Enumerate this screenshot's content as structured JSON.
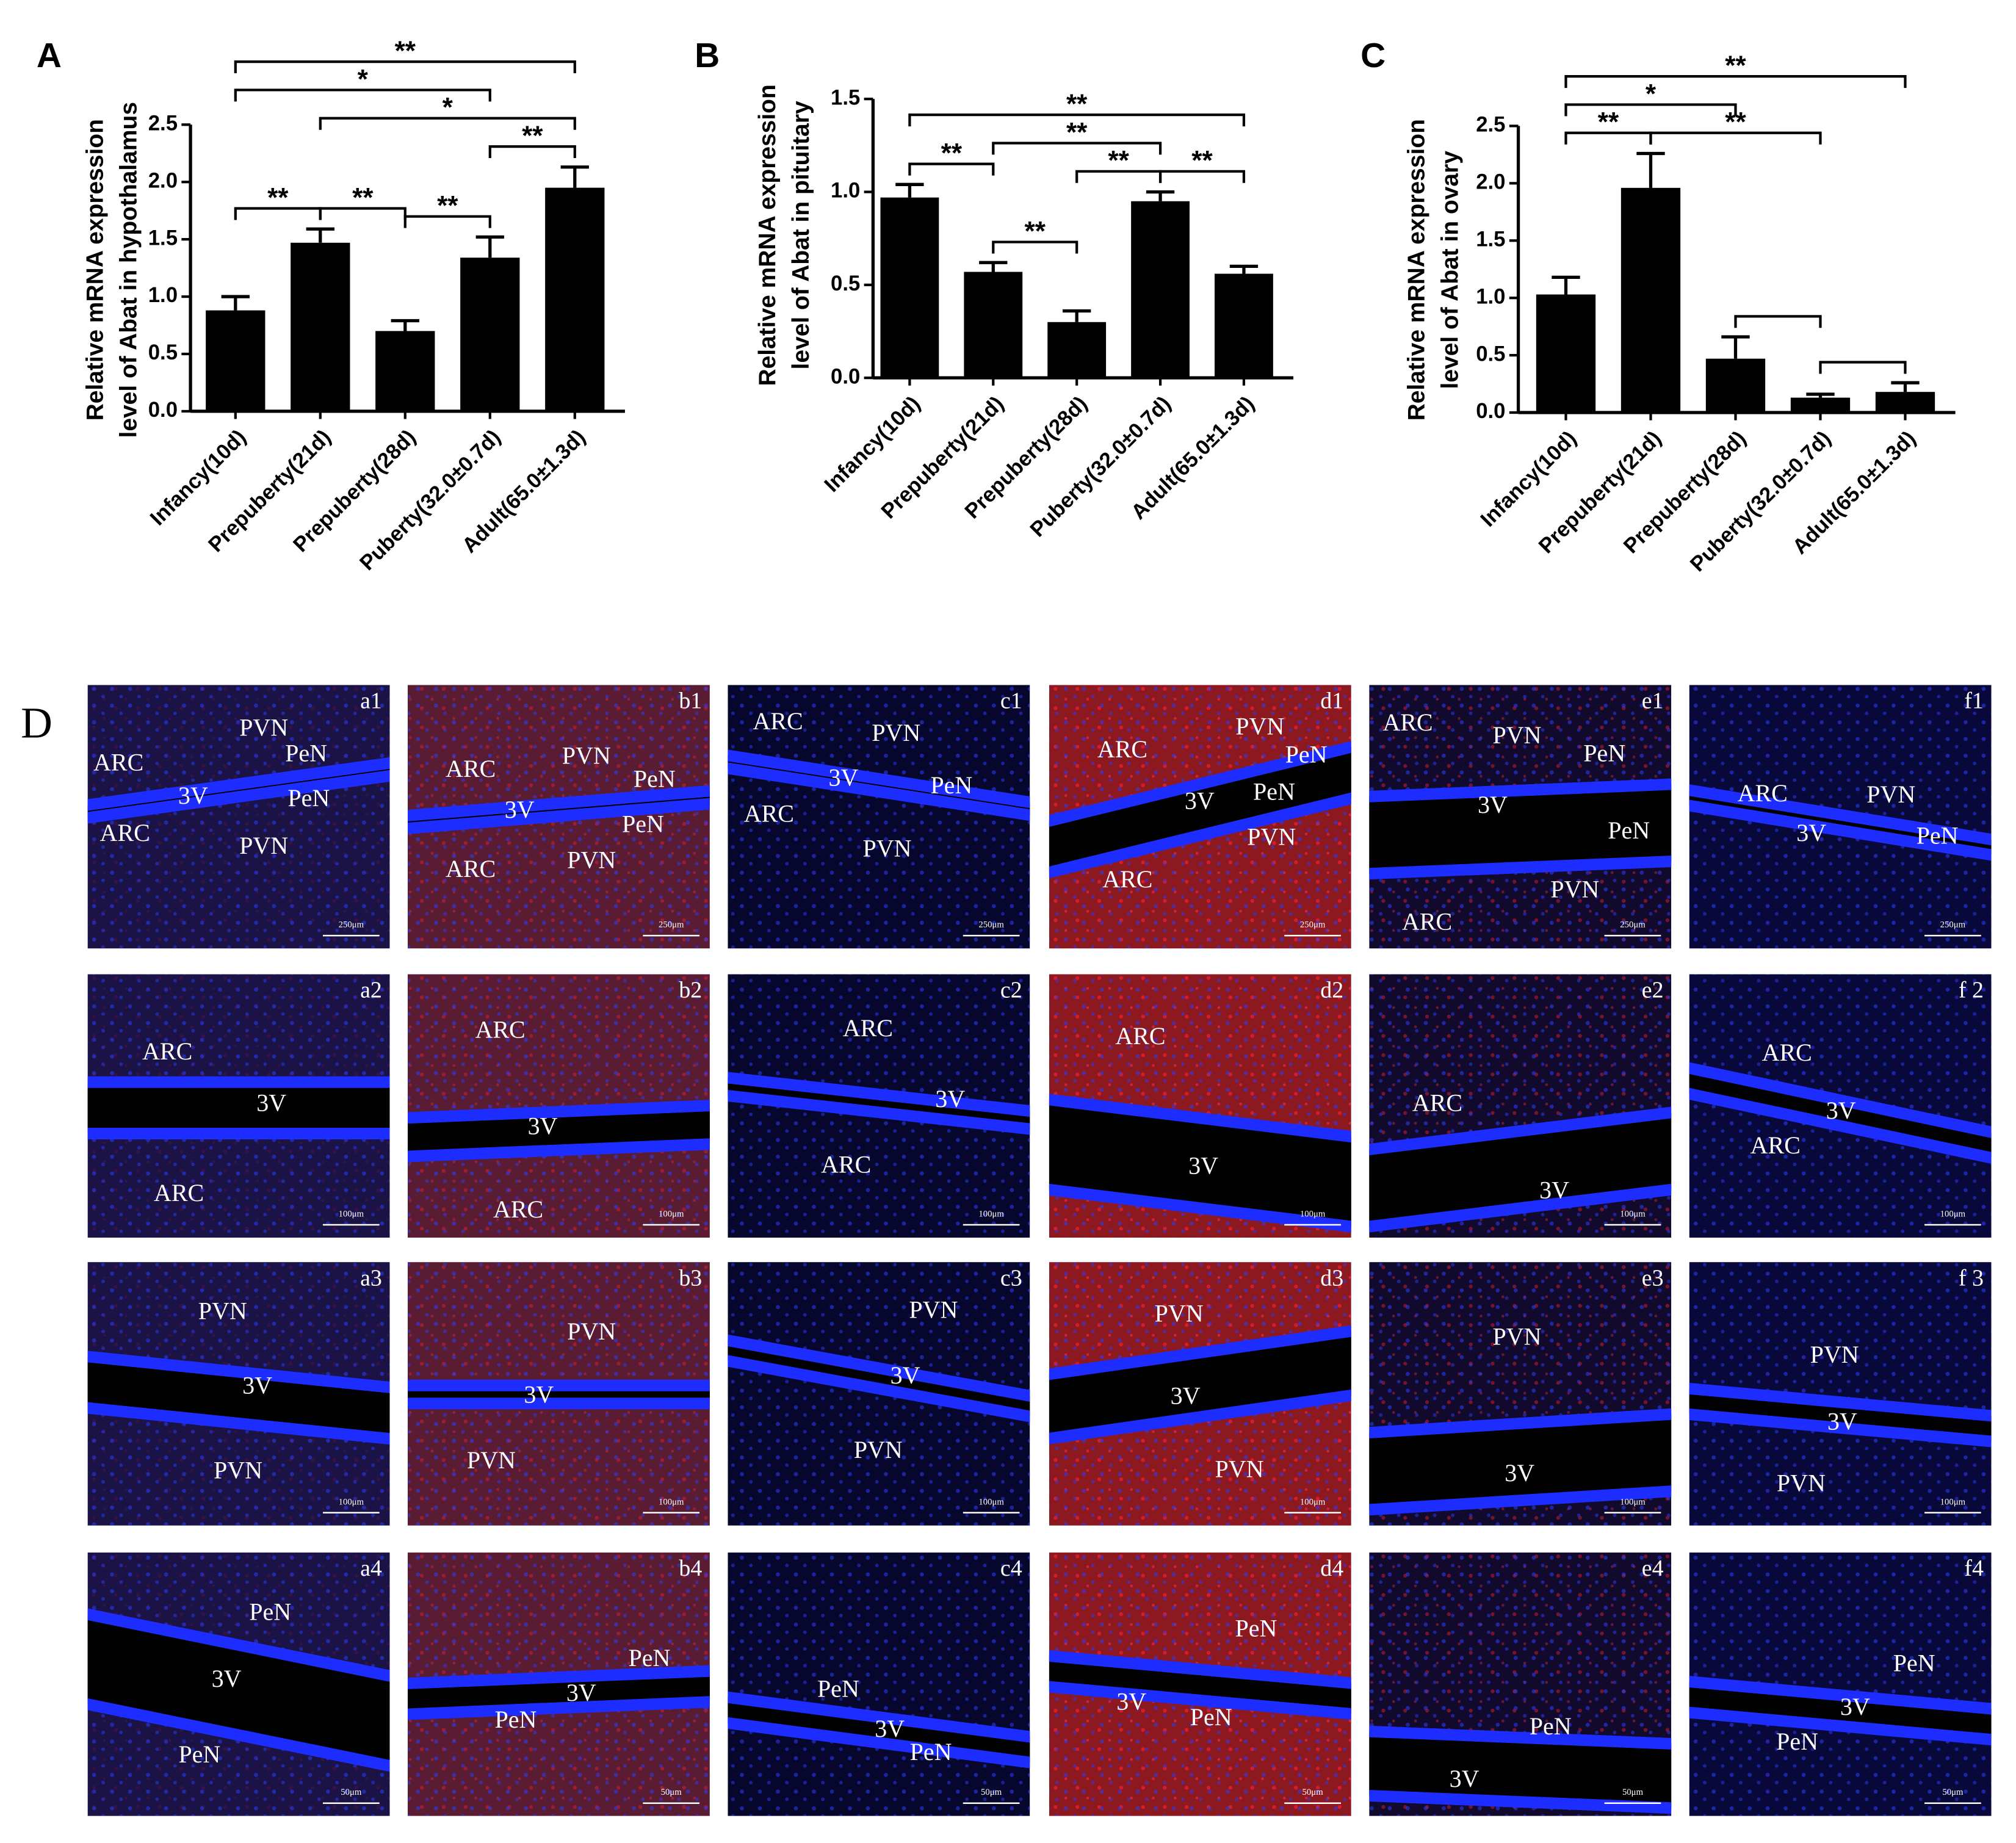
{
  "chart_data": [
    {
      "type": "bar",
      "panel": "A",
      "ylabel": [
        "Relative mRNA expression",
        "level of Abat in hypothalamus"
      ],
      "categories": [
        "Infancy(10d)",
        "Prepuberty(21d)",
        "Prepuberty(28d)",
        "Puberty(32.0±0.7d)",
        "Adult(65.0±1.3d)"
      ],
      "values": [
        0.88,
        1.47,
        0.7,
        1.34,
        1.95
      ],
      "errors": [
        0.12,
        0.12,
        0.09,
        0.18,
        0.18
      ],
      "color": "#000000",
      "ylim": [
        0,
        2.5
      ],
      "yticks": [
        {
          "value": 0,
          "label": "0.0"
        },
        0.5,
        {
          "value": 1,
          "label": "1.0"
        },
        1.5,
        {
          "value": 2,
          "label": "2.0"
        },
        2.5
      ],
      "significance": [
        {
          "from": 0,
          "to": 1,
          "label": "**"
        },
        {
          "from": 1,
          "to": 2,
          "label": "**"
        },
        {
          "from": 2,
          "to": 3,
          "label": "**"
        },
        {
          "from": 3,
          "to": 4,
          "label": "**"
        },
        {
          "from": 1,
          "to": 4,
          "label": "*"
        },
        {
          "from": 0,
          "to": 3,
          "label": "*"
        },
        {
          "from": 0,
          "to": 4,
          "label": "**"
        }
      ]
    },
    {
      "type": "bar",
      "panel": "B",
      "ylabel": [
        "Relative mRNA expression",
        "level of Abat in pituitary"
      ],
      "categories": [
        "Infancy(10d)",
        "Prepuberty(21d)",
        "Prepuberty(28d)",
        "Puberty(32.0±0.7d)",
        "Adult(65.0±1.3d)"
      ],
      "values": [
        0.97,
        0.57,
        0.3,
        0.95,
        0.56
      ],
      "errors": [
        0.07,
        0.05,
        0.06,
        0.05,
        0.04
      ],
      "color": "#000000",
      "ylim": [
        0,
        1.5
      ],
      "yticks": [
        {
          "value": 0,
          "label": "0.0"
        },
        0.5,
        {
          "value": 1,
          "label": "1.0"
        },
        1.5
      ],
      "significance": [
        {
          "from": 0,
          "to": 1,
          "label": "**"
        },
        {
          "from": 3,
          "to": 4,
          "label": "**"
        },
        {
          "from": 1,
          "to": 2,
          "label": "**"
        },
        {
          "from": 2,
          "to": 3,
          "label": "**"
        },
        {
          "from": 1,
          "to": 3,
          "label": "**"
        },
        {
          "from": 0,
          "to": 4,
          "label": "**"
        }
      ]
    },
    {
      "type": "bar",
      "panel": "C",
      "ylabel": [
        "Relative mRNA expression",
        "level of Abat in ovary"
      ],
      "categories": [
        "Infancy(10d)",
        "Prepuberty(21d)",
        "Prepuberty(28d)",
        "Puberty(32.0±0.7d)",
        "Adult(65.0±1.3d)"
      ],
      "values": [
        1.03,
        1.96,
        0.47,
        0.13,
        0.18
      ],
      "errors": [
        0.15,
        0.3,
        0.19,
        0.03,
        0.08
      ],
      "color": "#000000",
      "ylim": [
        0,
        2.5
      ],
      "yticks": [
        {
          "value": 0,
          "label": "0.0"
        },
        0.5,
        {
          "value": 1,
          "label": "1.0"
        },
        1.5,
        {
          "value": 2,
          "label": "2.0"
        },
        2.5
      ],
      "significance": [
        {
          "from": 0,
          "to": 1,
          "label": "**"
        },
        {
          "from": 3,
          "to": 4
        },
        {
          "from": 2,
          "to": 3
        },
        {
          "from": 1,
          "to": 3,
          "label": "**"
        },
        {
          "from": 0,
          "to": 2,
          "label": "*"
        },
        {
          "from": 0,
          "to": 4,
          "label": "**"
        }
      ]
    }
  ],
  "panel_d": {
    "label": "D",
    "tiles": [
      {
        "id": "a1",
        "scale": "250μm",
        "regions": [
          "PVN",
          "PeN",
          "ARC",
          "3V",
          "PeN",
          "ARC",
          "PVN"
        ]
      },
      {
        "id": "b1",
        "scale": "250μm",
        "regions": [
          "ARC",
          "PVN",
          "PeN",
          "3V",
          "PeN",
          "ARC",
          "PVN"
        ]
      },
      {
        "id": "c1",
        "scale": "250μm",
        "regions": [
          "ARC",
          "PVN",
          "3V",
          "PeN",
          "ARC",
          "PVN"
        ]
      },
      {
        "id": "d1",
        "scale": "250μm",
        "regions": [
          "ARC",
          "PVN",
          "PeN",
          "3V",
          "PeN",
          "PVN",
          "ARC"
        ]
      },
      {
        "id": "e1",
        "scale": "250μm",
        "regions": [
          "ARC",
          "PVN",
          "PeN",
          "3V",
          "PeN",
          "PVN",
          "ARC"
        ]
      },
      {
        "id": "f1",
        "scale": "250μm",
        "regions": [
          "ARC",
          "PVN",
          "3V",
          "PeN"
        ]
      },
      {
        "id": "a2",
        "scale": "100μm",
        "regions": [
          "ARC",
          "3V",
          "ARC"
        ]
      },
      {
        "id": "b2",
        "scale": "100μm",
        "regions": [
          "ARC",
          "3V",
          "ARC"
        ]
      },
      {
        "id": "c2",
        "scale": "100μm",
        "regions": [
          "ARC",
          "3V",
          "ARC"
        ]
      },
      {
        "id": "d2",
        "scale": "100μm",
        "regions": [
          "ARC",
          "3V"
        ]
      },
      {
        "id": "e2",
        "scale": "100μm",
        "regions": [
          "ARC",
          "3V"
        ]
      },
      {
        "id": "f 2",
        "scale": "100μm",
        "regions": [
          "ARC",
          "3V",
          "ARC"
        ]
      },
      {
        "id": "a3",
        "scale": "100μm",
        "regions": [
          "PVN",
          "3V",
          "PVN"
        ]
      },
      {
        "id": "b3",
        "scale": "100μm",
        "regions": [
          "PVN",
          "3V",
          "PVN"
        ]
      },
      {
        "id": "c3",
        "scale": "100μm",
        "regions": [
          "PVN",
          "3V",
          "PVN"
        ]
      },
      {
        "id": "d3",
        "scale": "100μm",
        "regions": [
          "PVN",
          "3V",
          "PVN"
        ]
      },
      {
        "id": "e3",
        "scale": "100μm",
        "regions": [
          "PVN",
          "3V"
        ]
      },
      {
        "id": "f 3",
        "scale": "100μm",
        "regions": [
          "PVN",
          "3V",
          "PVN"
        ]
      },
      {
        "id": "a4",
        "scale": "50μm",
        "regions": [
          "PeN",
          "3V",
          "PeN"
        ]
      },
      {
        "id": "b4",
        "scale": "50μm",
        "regions": [
          "PeN",
          "3V",
          "PeN"
        ]
      },
      {
        "id": "c4",
        "scale": "50μm",
        "regions": [
          "PeN",
          "3V",
          "PeN"
        ]
      },
      {
        "id": "d4",
        "scale": "50μm",
        "regions": [
          "PeN",
          "3V",
          "PeN"
        ]
      },
      {
        "id": "e4",
        "scale": "50μm",
        "regions": [
          "PeN",
          "3V"
        ]
      },
      {
        "id": "f4",
        "scale": "50μm",
        "regions": [
          "PeN",
          "3V",
          "PeN"
        ]
      }
    ]
  }
}
